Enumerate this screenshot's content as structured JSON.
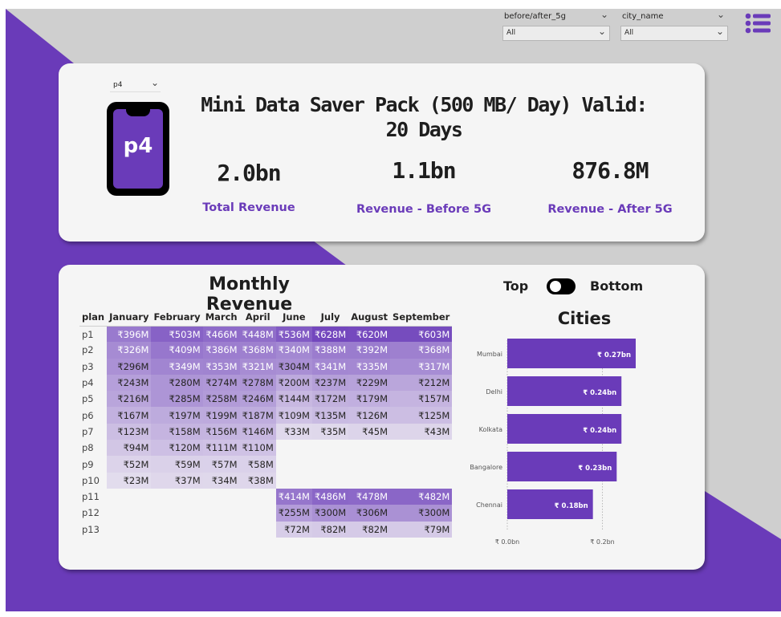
{
  "filters": {
    "before_after": {
      "label": "before/after_5g",
      "value": "All"
    },
    "city": {
      "label": "city_name",
      "value": "All"
    }
  },
  "icons": {
    "menu": "list-menu-icon",
    "phone": "smartphone-icon",
    "chevron": "chevron-down-icon"
  },
  "colors": {
    "accent": "#6a3bb9",
    "background": "#cfcfcf",
    "card": "#f5f5f5"
  },
  "plan_card": {
    "plan_selector": {
      "value": "p4"
    },
    "phone_label": "p4",
    "title": "Mini Data Saver Pack (500 MB/ Day) Valid: 20 Days",
    "kpis": [
      {
        "value": "2.0bn",
        "label": "Total Revenue"
      },
      {
        "value": "1.1bn",
        "label": "Revenue - Before 5G"
      },
      {
        "value": "876.8M",
        "label": "Revenue - After 5G"
      }
    ]
  },
  "monthly_revenue": {
    "title": "Monthly Revenue",
    "columns": [
      "plan",
      "January",
      "February",
      "March",
      "April",
      "June",
      "July",
      "August",
      "September"
    ],
    "rows": [
      {
        "plan": "p1",
        "cells": [
          "₹396M",
          "₹503M",
          "₹466M",
          "₹448M",
          "₹536M",
          "₹628M",
          "₹620M",
          "₹603M"
        ]
      },
      {
        "plan": "p2",
        "cells": [
          "₹326M",
          "₹409M",
          "₹386M",
          "₹368M",
          "₹340M",
          "₹388M",
          "₹392M",
          "₹368M"
        ]
      },
      {
        "plan": "p3",
        "cells": [
          "₹296M",
          "₹349M",
          "₹353M",
          "₹321M",
          "₹304M",
          "₹341M",
          "₹335M",
          "₹317M"
        ]
      },
      {
        "plan": "p4",
        "cells": [
          "₹243M",
          "₹280M",
          "₹274M",
          "₹278M",
          "₹200M",
          "₹237M",
          "₹229M",
          "₹212M"
        ]
      },
      {
        "plan": "p5",
        "cells": [
          "₹216M",
          "₹285M",
          "₹258M",
          "₹246M",
          "₹144M",
          "₹172M",
          "₹179M",
          "₹157M"
        ]
      },
      {
        "plan": "p6",
        "cells": [
          "₹167M",
          "₹197M",
          "₹199M",
          "₹187M",
          "₹109M",
          "₹135M",
          "₹126M",
          "₹125M"
        ]
      },
      {
        "plan": "p7",
        "cells": [
          "₹123M",
          "₹158M",
          "₹156M",
          "₹146M",
          "₹33M",
          "₹35M",
          "₹45M",
          "₹43M"
        ]
      },
      {
        "plan": "p8",
        "cells": [
          "₹94M",
          "₹120M",
          "₹111M",
          "₹110M",
          "",
          "",
          "",
          ""
        ]
      },
      {
        "plan": "p9",
        "cells": [
          "₹52M",
          "₹59M",
          "₹57M",
          "₹58M",
          "",
          "",
          "",
          ""
        ]
      },
      {
        "plan": "p10",
        "cells": [
          "₹23M",
          "₹37M",
          "₹34M",
          "₹38M",
          "",
          "",
          "",
          ""
        ]
      },
      {
        "plan": "p11",
        "cells": [
          "",
          "",
          "",
          "",
          "₹414M",
          "₹486M",
          "₹478M",
          "₹482M"
        ]
      },
      {
        "plan": "p12",
        "cells": [
          "",
          "",
          "",
          "",
          "₹255M",
          "₹300M",
          "₹306M",
          "₹300M"
        ]
      },
      {
        "plan": "p13",
        "cells": [
          "",
          "",
          "",
          "",
          "₹72M",
          "₹82M",
          "₹82M",
          "₹79M"
        ]
      }
    ]
  },
  "toggle": {
    "left_label": "Top",
    "right_label": "Bottom"
  },
  "chart_data": {
    "type": "bar",
    "orientation": "horizontal",
    "title": "Cities",
    "categories": [
      "Mumbai",
      "Delhi",
      "Kolkata",
      "Bangalore",
      "Chennai"
    ],
    "values": [
      0.27,
      0.24,
      0.24,
      0.23,
      0.18
    ],
    "value_labels": [
      "₹ 0.27bn",
      "₹ 0.24bn",
      "₹ 0.24bn",
      "₹ 0.23bn",
      "₹ 0.18bn"
    ],
    "x_ticks": [
      0,
      0.2
    ],
    "x_tick_labels": [
      "₹ 0.0bn",
      "₹ 0.2bn"
    ],
    "xlim": [
      0,
      0.27
    ],
    "bar_color": "#6a3bb9",
    "grid": true
  }
}
